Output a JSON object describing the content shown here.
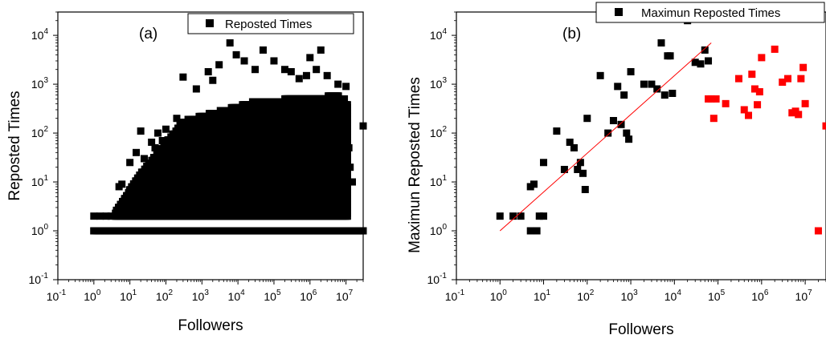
{
  "chart_data": [
    {
      "type": "scatter",
      "panel_label": "(a)",
      "xlabel": "Followers",
      "ylabel": "Reposted Times",
      "xscale": "log",
      "yscale": "log",
      "xlim": [
        0.1,
        30000000
      ],
      "ylim": [
        0.1,
        30000
      ],
      "x_ticks": [
        0.1,
        1,
        10,
        100,
        1000,
        10000,
        100000,
        1000000,
        10000000
      ],
      "y_ticks": [
        0.1,
        1,
        10,
        100,
        1000,
        10000
      ],
      "legend": {
        "position": "top-right",
        "entries": [
          "Reposted Times"
        ]
      },
      "dense_region_note": "thousands of overlapping points fill followers 3–1e7, repost counts 1–~1000",
      "series": [
        {
          "name": "Reposted Times",
          "color": "#000000",
          "marker": "square",
          "points": [
            [
              1,
              1
            ],
            [
              1,
              2
            ],
            [
              1.2,
              1
            ],
            [
              1.5,
              2
            ],
            [
              2,
              1
            ],
            [
              2.2,
              2
            ],
            [
              3,
              1
            ],
            [
              3,
              2
            ],
            [
              5,
              1
            ],
            [
              5,
              8
            ],
            [
              6,
              9
            ],
            [
              7,
              2
            ],
            [
              10,
              25
            ],
            [
              15,
              40
            ],
            [
              20,
              110
            ],
            [
              25,
              30
            ],
            [
              30,
              15
            ],
            [
              40,
              65
            ],
            [
              50,
              50
            ],
            [
              60,
              100
            ],
            [
              80,
              70
            ],
            [
              100,
              120
            ],
            [
              200,
              200
            ],
            [
              300,
              1400
            ],
            [
              700,
              800
            ],
            [
              1500,
              1800
            ],
            [
              2000,
              1200
            ],
            [
              3000,
              2500
            ],
            [
              6000,
              7000
            ],
            [
              9000,
              4000
            ],
            [
              15000,
              3000
            ],
            [
              30000,
              2000
            ],
            [
              50000,
              5000
            ],
            [
              100000,
              3000
            ],
            [
              200000,
              2000
            ],
            [
              300000,
              1800
            ],
            [
              500000,
              1300
            ],
            [
              800000,
              1500
            ],
            [
              1000000,
              3500
            ],
            [
              1500000,
              2000
            ],
            [
              2000000,
              5000
            ],
            [
              3000000,
              1500
            ],
            [
              6000000,
              1000
            ],
            [
              9000000,
              500
            ],
            [
              10000000,
              900
            ],
            [
              12000000,
              50
            ],
            [
              13000000,
              20
            ],
            [
              15000000,
              10
            ],
            [
              30000000,
              140
            ],
            [
              30000000,
              1
            ]
          ]
        }
      ]
    },
    {
      "type": "scatter",
      "panel_label": "(b)",
      "xlabel": "Followers",
      "ylabel": "Maximun Reposted Times",
      "xscale": "log",
      "yscale": "log",
      "xlim": [
        0.1,
        30000000
      ],
      "ylim": [
        0.1,
        30000
      ],
      "x_ticks": [
        0.1,
        1,
        10,
        100,
        1000,
        10000,
        100000,
        1000000,
        10000000
      ],
      "y_ticks": [
        0.1,
        1,
        10,
        100,
        1000,
        10000
      ],
      "legend": {
        "position": "top-right",
        "entries": [
          "Maximun Reposted Times"
        ]
      },
      "series": [
        {
          "name": "Maximun Reposted Times",
          "color": "#000000",
          "marker": "square",
          "points": [
            [
              1,
              2
            ],
            [
              2,
              2
            ],
            [
              3,
              2
            ],
            [
              5,
              1
            ],
            [
              5,
              8
            ],
            [
              6,
              9
            ],
            [
              7,
              1
            ],
            [
              8,
              2
            ],
            [
              10,
              25
            ],
            [
              10,
              2
            ],
            [
              20,
              110
            ],
            [
              30,
              18
            ],
            [
              40,
              65
            ],
            [
              50,
              50
            ],
            [
              60,
              18
            ],
            [
              70,
              25
            ],
            [
              80,
              15
            ],
            [
              90,
              7
            ],
            [
              100,
              200
            ],
            [
              200,
              1500
            ],
            [
              300,
              100
            ],
            [
              400,
              180
            ],
            [
              500,
              900
            ],
            [
              600,
              150
            ],
            [
              700,
              600
            ],
            [
              800,
              100
            ],
            [
              900,
              75
            ],
            [
              1000,
              1800
            ],
            [
              2000,
              1000
            ],
            [
              3000,
              1000
            ],
            [
              4000,
              800
            ],
            [
              5000,
              7000
            ],
            [
              6000,
              600
            ],
            [
              7000,
              3800
            ],
            [
              8000,
              3800
            ],
            [
              9000,
              650
            ],
            [
              20000,
              20000
            ],
            [
              30000,
              2800
            ],
            [
              40000,
              2600
            ],
            [
              50000,
              5000
            ],
            [
              60000,
              3000
            ]
          ]
        },
        {
          "color": "#ff0000",
          "marker": "square",
          "points": [
            [
              60000,
              500
            ],
            [
              70000,
              500
            ],
            [
              80000,
              200
            ],
            [
              90000,
              500
            ],
            [
              150000,
              400
            ],
            [
              300000,
              1300
            ],
            [
              400000,
              300
            ],
            [
              500000,
              230
            ],
            [
              600000,
              1600
            ],
            [
              700000,
              800
            ],
            [
              800000,
              380
            ],
            [
              900000,
              700
            ],
            [
              1000000,
              3500
            ],
            [
              2000000,
              5200
            ],
            [
              3000000,
              1100
            ],
            [
              4000000,
              1300
            ],
            [
              5000000,
              260
            ],
            [
              6000000,
              280
            ],
            [
              7000000,
              240
            ],
            [
              8000000,
              1300
            ],
            [
              9000000,
              2200
            ],
            [
              10000000,
              400
            ],
            [
              20000000,
              1
            ],
            [
              30000000,
              140
            ]
          ]
        }
      ],
      "fit_line": {
        "color": "#ff0000",
        "from": [
          1,
          1
        ],
        "to": [
          70000,
          7000
        ]
      }
    }
  ]
}
